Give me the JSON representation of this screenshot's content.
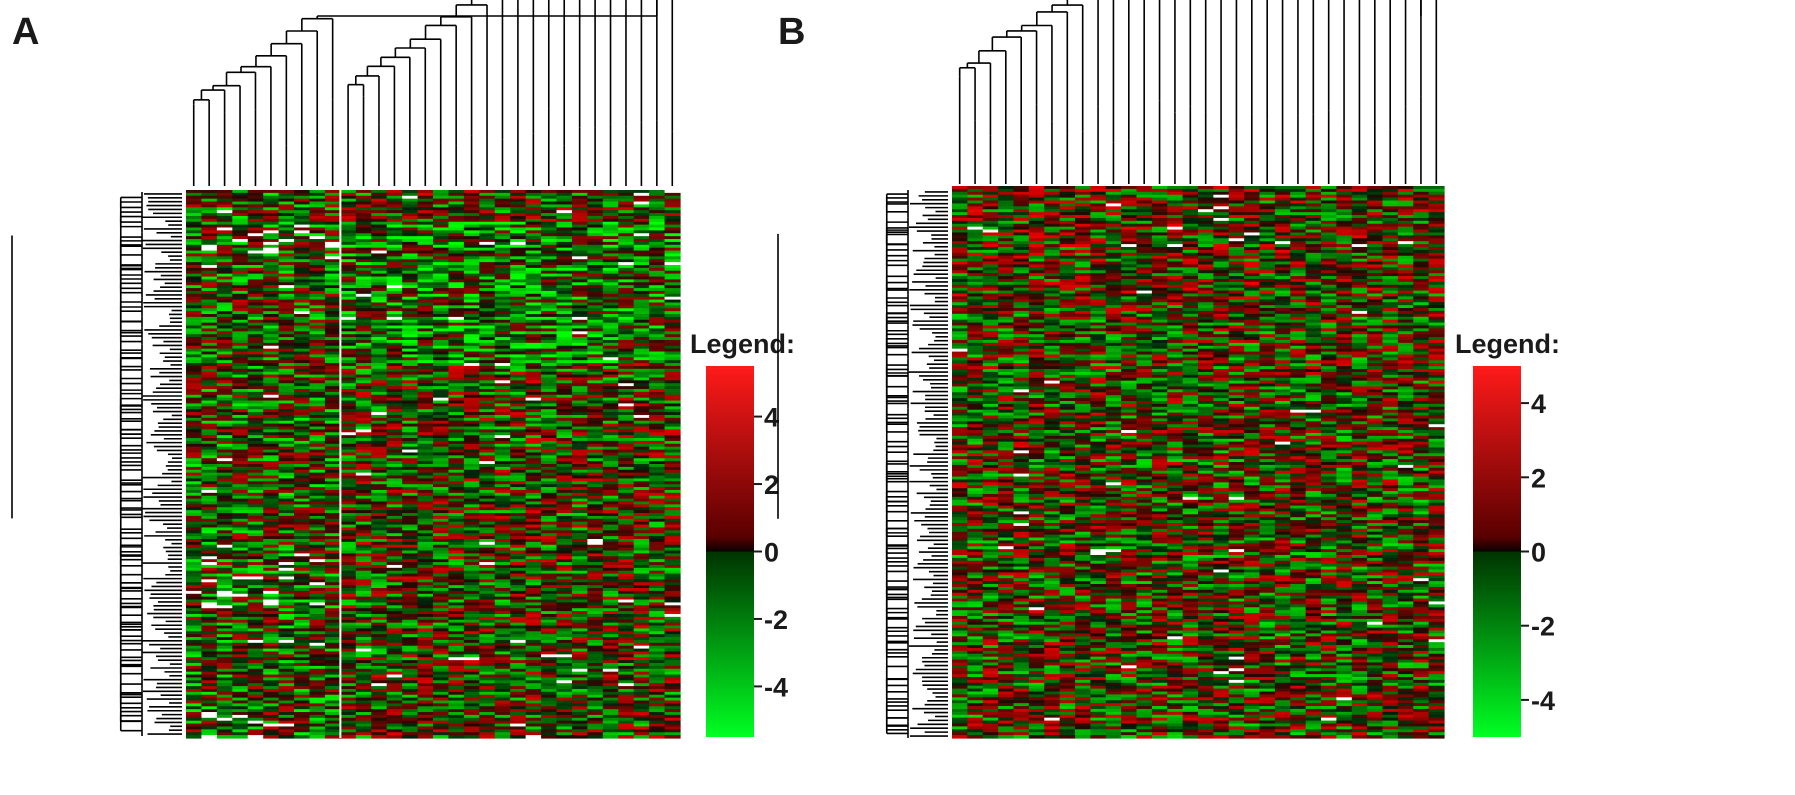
{
  "chart_data": [
    {
      "type": "heatmap",
      "panel_label": "A",
      "title": "",
      "xlabel": "",
      "ylabel": "",
      "columns": 32,
      "column_groups": [
        10,
        22
      ],
      "legend": {
        "title": "Legend:",
        "ticks": [
          "4",
          "2",
          "0",
          "-2",
          "-4"
        ],
        "tick_values": [
          4,
          2,
          0,
          -2,
          -4
        ],
        "range": [
          -5.5,
          5.5
        ],
        "high_color": "#ff0000",
        "mid_color": "#000000",
        "low_color": "#00ff00"
      },
      "colors": {
        "missing": "#ffffff"
      }
    },
    {
      "type": "heatmap",
      "panel_label": "B",
      "title": "",
      "xlabel": "",
      "ylabel": "",
      "columns": 32,
      "column_groups": [
        32
      ],
      "legend": {
        "title": "Legend:",
        "ticks": [
          "4",
          "2",
          "0",
          "-2",
          "-4"
        ],
        "tick_values": [
          4,
          2,
          0,
          -2,
          -4
        ],
        "range": [
          -5,
          5
        ],
        "high_color": "#ff0000",
        "mid_color": "#000000",
        "low_color": "#00ff00"
      },
      "colors": {
        "missing": "#ffffff"
      }
    }
  ]
}
